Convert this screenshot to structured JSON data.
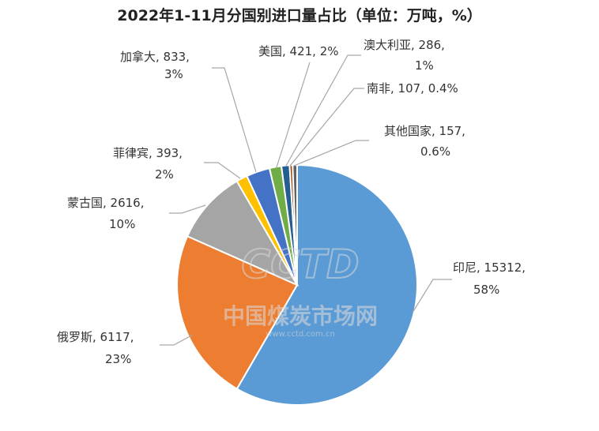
{
  "chart_data": {
    "type": "pie",
    "title": "2022年1-11月分国别进口量占比（单位：万吨，%）",
    "unit": "万吨",
    "slices": [
      {
        "name": "印尼",
        "value": 15312,
        "percent_label": "58%",
        "color": "#5b9bd5"
      },
      {
        "name": "俄罗斯",
        "value": 6117,
        "percent_label": "23%",
        "color": "#ed7d31"
      },
      {
        "name": "蒙古国",
        "value": 2616,
        "percent_label": "10%",
        "color": "#a5a5a5"
      },
      {
        "name": "菲律宾",
        "value": 393,
        "percent_label": "2%",
        "color": "#ffc000"
      },
      {
        "name": "加拿大",
        "value": 833,
        "percent_label": "3%",
        "color": "#4472c4"
      },
      {
        "name": "美国",
        "value": 421,
        "percent_label": "2%",
        "color": "#70ad47"
      },
      {
        "name": "澳大利亚",
        "value": 286,
        "percent_label": "1%",
        "color": "#255e91"
      },
      {
        "name": "南非",
        "value": 107,
        "percent_label": "0.4%",
        "color": "#9e480e"
      },
      {
        "name": "其他国家",
        "value": 157,
        "percent_label": "0.6%",
        "color": "#636363"
      }
    ]
  },
  "watermark": {
    "logo": "CCTD",
    "name": "中国煤炭市场网",
    "url": "www.cctd.com.cn"
  }
}
